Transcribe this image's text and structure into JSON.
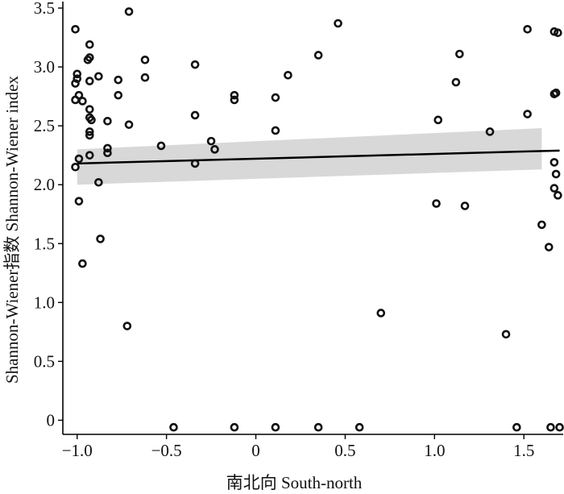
{
  "chart_data": {
    "type": "scatter",
    "title": "",
    "xlabel": "南北向 South-north",
    "ylabel": "Shannon-Wiener指数 Shannon-Wiener index",
    "xlim": [
      -1.08,
      1.72
    ],
    "ylim": [
      -0.12,
      3.5
    ],
    "xticks": [
      -1.0,
      -0.5,
      0,
      0.5,
      1.0,
      1.5
    ],
    "xtick_labels": [
      "−1.0",
      "−0.5",
      "0",
      "0.5",
      "1.0",
      "1.5"
    ],
    "yticks": [
      0,
      0.5,
      1.0,
      1.5,
      2.0,
      2.5,
      3.0,
      3.5
    ],
    "ytick_labels": [
      "0",
      "0.5",
      "1.0",
      "1.5",
      "2.0",
      "2.5",
      "3.0",
      "3.5"
    ],
    "grid": false,
    "legend": "none",
    "points": [
      {
        "x": -1.01,
        "y": 3.32
      },
      {
        "x": -1.01,
        "y": 2.86
      },
      {
        "x": -1.01,
        "y": 2.72
      },
      {
        "x": -1.0,
        "y": 2.94
      },
      {
        "x": -1.0,
        "y": 2.9
      },
      {
        "x": -0.99,
        "y": 2.76
      },
      {
        "x": -1.01,
        "y": 2.15
      },
      {
        "x": -0.99,
        "y": 2.22
      },
      {
        "x": -0.99,
        "y": 1.86
      },
      {
        "x": -0.97,
        "y": 1.33
      },
      {
        "x": -0.97,
        "y": 2.71
      },
      {
        "x": -0.93,
        "y": 3.19
      },
      {
        "x": -0.93,
        "y": 3.08
      },
      {
        "x": -0.94,
        "y": 3.06
      },
      {
        "x": -0.93,
        "y": 2.88
      },
      {
        "x": -0.93,
        "y": 2.64
      },
      {
        "x": -0.93,
        "y": 2.57
      },
      {
        "x": -0.92,
        "y": 2.55
      },
      {
        "x": -0.93,
        "y": 2.45
      },
      {
        "x": -0.93,
        "y": 2.42
      },
      {
        "x": -0.93,
        "y": 2.25
      },
      {
        "x": -0.88,
        "y": 2.92
      },
      {
        "x": -0.88,
        "y": 2.02
      },
      {
        "x": -0.87,
        "y": 1.54
      },
      {
        "x": -0.83,
        "y": 2.54
      },
      {
        "x": -0.83,
        "y": 2.31
      },
      {
        "x": -0.83,
        "y": 2.27
      },
      {
        "x": -0.77,
        "y": 2.89
      },
      {
        "x": -0.77,
        "y": 2.76
      },
      {
        "x": -0.71,
        "y": 3.47
      },
      {
        "x": -0.71,
        "y": 2.51
      },
      {
        "x": -0.72,
        "y": 0.8
      },
      {
        "x": -0.62,
        "y": 3.06
      },
      {
        "x": -0.62,
        "y": 2.91
      },
      {
        "x": -0.53,
        "y": 2.33
      },
      {
        "x": -0.46,
        "y": -0.06
      },
      {
        "x": -0.34,
        "y": 3.02
      },
      {
        "x": -0.34,
        "y": 2.59
      },
      {
        "x": -0.34,
        "y": 2.18
      },
      {
        "x": -0.25,
        "y": 2.37
      },
      {
        "x": -0.23,
        "y": 2.3
      },
      {
        "x": -0.12,
        "y": 2.76
      },
      {
        "x": -0.12,
        "y": 2.72
      },
      {
        "x": -0.12,
        "y": -0.06
      },
      {
        "x": 0.11,
        "y": 2.74
      },
      {
        "x": 0.11,
        "y": 2.46
      },
      {
        "x": 0.11,
        "y": -0.06
      },
      {
        "x": 0.18,
        "y": 2.93
      },
      {
        "x": 0.35,
        "y": 3.1
      },
      {
        "x": 0.35,
        "y": -0.06
      },
      {
        "x": 0.46,
        "y": 3.37
      },
      {
        "x": 0.58,
        "y": -0.06
      },
      {
        "x": 0.7,
        "y": 0.91
      },
      {
        "x": 1.01,
        "y": 1.84
      },
      {
        "x": 1.02,
        "y": 2.55
      },
      {
        "x": 1.12,
        "y": 2.87
      },
      {
        "x": 1.14,
        "y": 3.11
      },
      {
        "x": 1.17,
        "y": 1.82
      },
      {
        "x": 1.31,
        "y": 2.45
      },
      {
        "x": 1.4,
        "y": 0.73
      },
      {
        "x": 1.46,
        "y": -0.06
      },
      {
        "x": 1.52,
        "y": 3.32
      },
      {
        "x": 1.52,
        "y": 2.6
      },
      {
        "x": 1.6,
        "y": 1.66
      },
      {
        "x": 1.64,
        "y": 1.47
      },
      {
        "x": 1.65,
        "y": -0.06
      },
      {
        "x": 1.67,
        "y": 3.3
      },
      {
        "x": 1.69,
        "y": 3.29
      },
      {
        "x": 1.67,
        "y": 2.77
      },
      {
        "x": 1.68,
        "y": 2.78
      },
      {
        "x": 1.67,
        "y": 2.19
      },
      {
        "x": 1.68,
        "y": 2.09
      },
      {
        "x": 1.67,
        "y": 1.97
      },
      {
        "x": 1.69,
        "y": 1.91
      },
      {
        "x": 1.7,
        "y": -0.06
      }
    ],
    "fit_line": {
      "x": [
        -1.0,
        1.7
      ],
      "y": [
        2.18,
        2.29
      ]
    },
    "confidence_band": {
      "x": [
        -1.0,
        1.6
      ],
      "upper": [
        2.3,
        2.48
      ],
      "lower": [
        2.0,
        2.13
      ]
    },
    "colors": {
      "points": "#111111",
      "fit": "#000000",
      "band": "#d8d8d8"
    }
  }
}
